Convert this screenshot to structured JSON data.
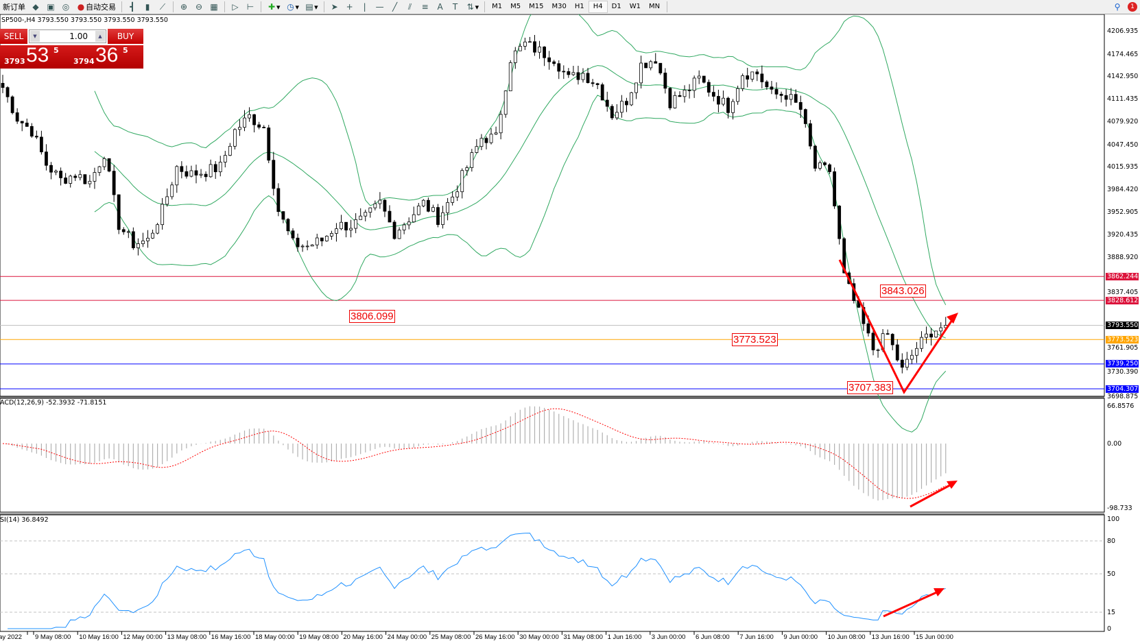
{
  "toolbar": {
    "new_order": "新订单",
    "auto_trading": "自动交易",
    "timeframes": [
      "M1",
      "M5",
      "M15",
      "M30",
      "H1",
      "H4",
      "D1",
      "W1",
      "MN"
    ],
    "active_timeframe": "H4",
    "notification_count": "1"
  },
  "chart_header": "SP500-,H4  3793.550 3793.550 3793.550 3793.550",
  "trade_panel": {
    "sell_label": "SELL",
    "buy_label": "BUY",
    "lot": "1.00",
    "sell_price_prefix": "3793",
    "sell_price_big": "53",
    "sell_price_sup": "5",
    "buy_price_prefix": "3794",
    "buy_price_big": "36",
    "buy_price_sup": "5"
  },
  "price_axis": [
    "4206.935",
    "4174.465",
    "4142.950",
    "4111.435",
    "4079.920",
    "4047.450",
    "4015.935",
    "3984.420",
    "3952.905",
    "3920.435",
    "3888.920",
    "3837.405",
    "3761.905",
    "3730.390",
    "3698.875"
  ],
  "price_tags": [
    {
      "value": "3862.244",
      "color": "#dc143c"
    },
    {
      "value": "3828.612",
      "color": "#dc143c"
    },
    {
      "value": "3793.550",
      "color": "#000000"
    },
    {
      "value": "3773.523",
      "color": "#ffa500"
    },
    {
      "value": "3739.250",
      "color": "#0000ff"
    },
    {
      "value": "3704.307",
      "color": "#0000ff"
    }
  ],
  "annotations": [
    "3806.099",
    "3773.523",
    "3843.026",
    "3707.383"
  ],
  "macd": {
    "label": "ACD(12,26,9) -52.3932 -71.8151",
    "axis": [
      "66.8576",
      "0.00",
      "-98.733"
    ]
  },
  "rsi": {
    "label": "SI(14) 36.8492",
    "axis": [
      "100",
      "80",
      "50",
      "15",
      "0"
    ]
  },
  "date_axis": [
    "lay 2022",
    "9 May 08:00",
    "10 May 16:00",
    "12 May 00:00",
    "13 May 08:00",
    "16 May 16:00",
    "18 May 00:00",
    "19 May 08:00",
    "20 May 16:00",
    "24 May 00:00",
    "25 May 08:00",
    "26 May 16:00",
    "30 May 00:00",
    "31 May 08:00",
    "1 Jun 16:00",
    "3 Jun 00:00",
    "6 Jun 08:00",
    "7 Jun 16:00",
    "9 Jun 00:00",
    "10 Jun 08:00",
    "13 Jun 16:00",
    "15 Jun 00:00"
  ],
  "chart_data": {
    "type": "candlestick",
    "symbol": "SP500-",
    "timeframe": "H4",
    "ylim": [
      3698.875,
      4215
    ],
    "close_samples_every_3_bars": [
      4128,
      4085,
      4067,
      4020,
      3998,
      4006,
      3995,
      4036,
      3935,
      3908,
      3913,
      3955,
      4016,
      4006,
      4010,
      4016,
      4067,
      4087,
      4072,
      3955,
      3908,
      3905,
      3913,
      3934,
      3934,
      3944,
      3965,
      3924,
      3944,
      3965,
      3944,
      3975,
      4016,
      4057,
      4057,
      4169,
      4189,
      4179,
      4169,
      4140,
      4148,
      4132,
      4090,
      4110,
      4160,
      4169,
      4108,
      4120,
      4140,
      4118,
      4100,
      4148,
      4148,
      4118,
      4118,
      4097,
      4015,
      4011,
      3862,
      3810,
      3760,
      3780,
      3730,
      3762,
      3785,
      3793.55
    ],
    "horizontal_lines": [
      3862.244,
      3828.612,
      3793.55,
      3773.523,
      3739.25,
      3704.307
    ],
    "indicators": [
      "Bollinger Bands(20,2)",
      "MACD(12,26,9)",
      "RSI(14)"
    ],
    "colors": {
      "bands": "#2fa860",
      "macd_hist": "#b0b0b0",
      "macd_signal": "#ff0000",
      "rsi": "#1e90ff",
      "arrows": "#ff0000"
    }
  }
}
